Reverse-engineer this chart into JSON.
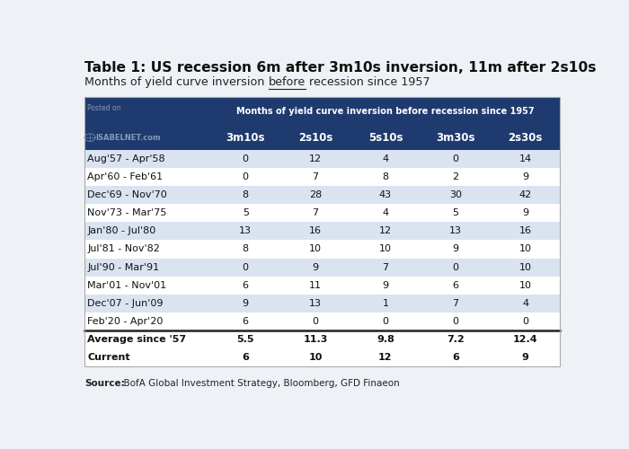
{
  "title_bold": "Table 1: US recession 6m after 3m10s inversion, 11m after 2s10s",
  "subtitle_pre": "Months of yield curve inversion ",
  "subtitle_under": "before",
  "subtitle_post": " recession since 1957",
  "header_title": "Months of yield curve inversion before recession since 1957",
  "columns": [
    "3m10s",
    "2s10s",
    "5s10s",
    "3m30s",
    "2s30s"
  ],
  "rows": [
    [
      "Aug'57 - Apr'58",
      "0",
      "12",
      "4",
      "0",
      "14"
    ],
    [
      "Apr'60 - Feb'61",
      "0",
      "7",
      "8",
      "2",
      "9"
    ],
    [
      "Dec'69 - Nov'70",
      "8",
      "28",
      "43",
      "30",
      "42"
    ],
    [
      "Nov'73 - Mar'75",
      "5",
      "7",
      "4",
      "5",
      "9"
    ],
    [
      "Jan'80 - Jul'80",
      "13",
      "16",
      "12",
      "13",
      "16"
    ],
    [
      "Jul'81 - Nov'82",
      "8",
      "10",
      "10",
      "9",
      "10"
    ],
    [
      "Jul'90 - Mar'91",
      "0",
      "9",
      "7",
      "0",
      "10"
    ],
    [
      "Mar'01 - Nov'01",
      "6",
      "11",
      "9",
      "6",
      "10"
    ],
    [
      "Dec'07 - Jun'09",
      "9",
      "13",
      "1",
      "7",
      "4"
    ],
    [
      "Feb'20 - Apr'20",
      "6",
      "0",
      "0",
      "0",
      "0"
    ]
  ],
  "avg_row": [
    "Average since '57",
    "5.5",
    "11.3",
    "9.8",
    "7.2",
    "12.4"
  ],
  "current_row": [
    "Current",
    "6",
    "10",
    "12",
    "6",
    "9"
  ],
  "source_bold": "Source:",
  "source_normal": "  BofA Global Investment Strategy, Bloomberg, GFD Finaeon",
  "header_bg": "#1e3a6e",
  "header_text_color": "#ffffff",
  "alt_row_bg": "#d9e4f0",
  "normal_row_bg": "#ffffff",
  "summary_bg": "#ffffff",
  "logo_text": "ISABELNET.com",
  "posted_on_text": "Posted on",
  "bg_color": "#eef2f7",
  "table_border_color": "#aaaaaa"
}
